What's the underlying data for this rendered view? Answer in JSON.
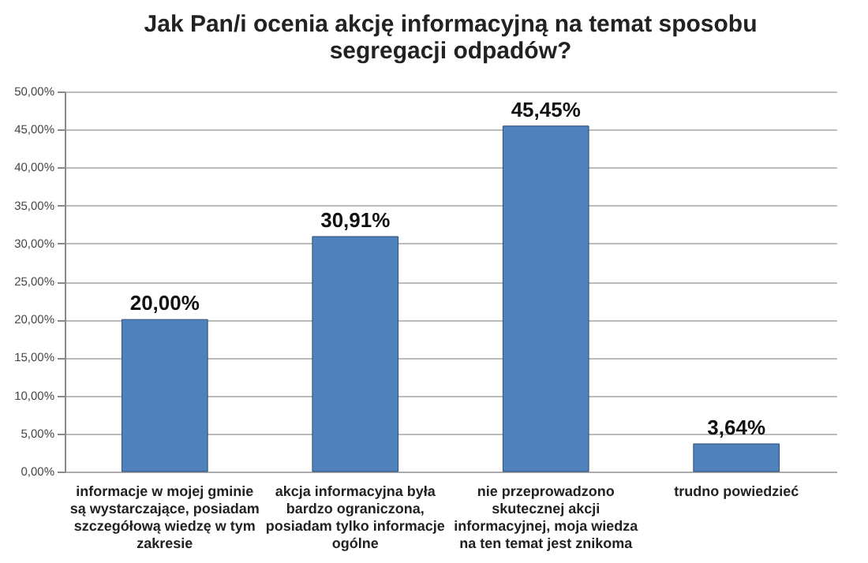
{
  "chart_data": {
    "type": "bar",
    "title": "Jak Pan/i ocenia akcję informacyjną na temat sposobu segregacji odpadów?",
    "categories": [
      "informacje w mojej gminie są wystarczające, posiadam szczegółową wiedzę w tym zakresie",
      "akcja informacyjna była bardzo ograniczona, posiadam tylko informacje ogólne",
      "nie przeprowadzono skutecznej akcji informacyjnej, moja wiedza na ten temat jest znikoma",
      "trudno powiedzieć"
    ],
    "values": [
      20,
      30.91,
      45.45,
      3.64
    ],
    "value_labels": [
      "20,00%",
      "30,91%",
      "45,45%",
      "3,64%"
    ],
    "color": "#4f81bd",
    "ylim": [
      0,
      50
    ],
    "yticks": [
      {
        "value": 0,
        "label": "0,00%"
      },
      {
        "value": 5,
        "label": "5,00%"
      },
      {
        "value": 10,
        "label": "10,00%"
      },
      {
        "value": 15,
        "label": "15,00%"
      },
      {
        "value": 20,
        "label": "20,00%"
      },
      {
        "value": 25,
        "label": "25,00%"
      },
      {
        "value": 30,
        "label": "30,00%"
      },
      {
        "value": 35,
        "label": "35,00%"
      },
      {
        "value": 40,
        "label": "40,00%"
      },
      {
        "value": 45,
        "label": "45,00%"
      },
      {
        "value": 50,
        "label": "50,00%"
      }
    ],
    "grid": true
  }
}
